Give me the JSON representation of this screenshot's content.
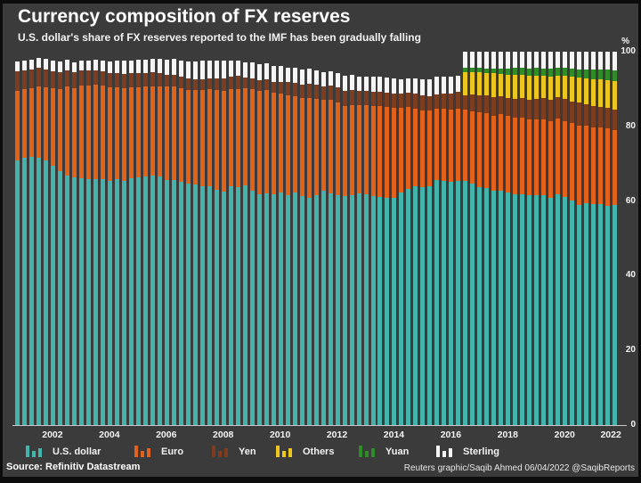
{
  "header": {
    "title": "Currency composition of FX reserves",
    "subtitle": "U.S. dollar's share of FX reserves reported to the IMF has been gradually falling"
  },
  "chart_data": {
    "type": "bar",
    "stacked": true,
    "title": "Currency composition of FX reserves",
    "unit": "%",
    "y_axis_unit_label": "%",
    "ylim": [
      0,
      100
    ],
    "grid": false,
    "legend_position": "bottom",
    "x_period_start": "2001 Q1",
    "x_period_end": "2022 Q1",
    "x_frequency": "quarterly",
    "y_ticks": [
      "100",
      "80",
      "60",
      "40",
      "20",
      "0"
    ],
    "x_ticks": [
      {
        "label": "2002",
        "center_index": 5.5
      },
      {
        "label": "2004",
        "center_index": 13.5
      },
      {
        "label": "2006",
        "center_index": 21.5
      },
      {
        "label": "2008",
        "center_index": 29.5
      },
      {
        "label": "2010",
        "center_index": 37.5
      },
      {
        "label": "2012",
        "center_index": 45.5
      },
      {
        "label": "2014",
        "center_index": 53.5
      },
      {
        "label": "2016",
        "center_index": 61.5
      },
      {
        "label": "2018",
        "center_index": 69.5
      },
      {
        "label": "2020",
        "center_index": 77.5
      },
      {
        "label": "2022",
        "center_index": 84
      }
    ],
    "series": [
      {
        "key": "us-dollar",
        "name": "U.S. dollar",
        "color": "#43b3ab",
        "values": [
          71.0,
          71.6,
          71.8,
          71.5,
          71.0,
          69.5,
          68.0,
          66.9,
          66.3,
          66.1,
          65.9,
          65.9,
          65.9,
          65.5,
          65.8,
          65.5,
          66.0,
          66.3,
          66.5,
          66.9,
          66.5,
          65.6,
          65.7,
          65.1,
          64.6,
          64.5,
          63.9,
          63.9,
          62.9,
          62.6,
          64.0,
          63.8,
          64.2,
          62.8,
          61.7,
          62.1,
          61.7,
          62.3,
          61.6,
          62.2,
          61.4,
          60.9,
          61.5,
          62.7,
          62.1,
          61.6,
          61.3,
          61.5,
          62.1,
          61.8,
          61.4,
          61.2,
          60.8,
          60.8,
          62.4,
          63.3,
          64.0,
          63.8,
          64.0,
          65.7,
          65.4,
          65.2,
          65.4,
          65.3,
          64.6,
          63.8,
          63.5,
          62.7,
          62.8,
          62.4,
          61.9,
          61.7,
          61.6,
          61.5,
          61.6,
          60.9,
          61.8,
          61.2,
          60.2,
          59.0,
          59.4,
          59.2,
          59.1,
          58.8,
          58.9
        ]
      },
      {
        "key": "euro",
        "name": "Euro",
        "color": "#e2621c",
        "values": [
          18.5,
          18.3,
          18.5,
          19.2,
          19.5,
          20.7,
          21.9,
          23.7,
          24.0,
          24.8,
          25.1,
          25.2,
          25.0,
          24.9,
          24.7,
          24.8,
          24.4,
          24.2,
          24.1,
          23.9,
          24.3,
          25.0,
          24.9,
          25.1,
          25.2,
          25.2,
          25.9,
          26.1,
          26.8,
          27.0,
          25.9,
          26.2,
          25.9,
          27.1,
          27.8,
          27.7,
          27.3,
          26.5,
          26.8,
          25.8,
          26.1,
          26.6,
          25.8,
          24.4,
          24.9,
          24.9,
          24.1,
          24.1,
          23.5,
          23.8,
          24.1,
          24.2,
          24.4,
          24.1,
          22.6,
          21.9,
          20.8,
          20.5,
          20.3,
          19.1,
          19.4,
          19.2,
          19.3,
          19.1,
          19.3,
          19.9,
          20.0,
          20.2,
          20.4,
          20.3,
          20.5,
          20.7,
          20.2,
          20.4,
          20.3,
          20.6,
          20.2,
          20.3,
          20.6,
          21.3,
          20.7,
          20.6,
          20.5,
          20.6,
          20.1
        ]
      },
      {
        "key": "yen",
        "name": "Yen",
        "color": "#7d3c1d",
        "values": [
          5.2,
          5.0,
          4.9,
          5.0,
          4.8,
          4.6,
          4.5,
          4.4,
          4.2,
          4.0,
          3.9,
          3.9,
          3.9,
          3.9,
          3.8,
          3.8,
          3.8,
          3.7,
          3.6,
          3.6,
          3.5,
          3.3,
          3.2,
          3.1,
          3.0,
          2.9,
          2.9,
          2.9,
          3.1,
          3.2,
          3.3,
          3.5,
          3.0,
          2.9,
          2.9,
          2.9,
          3.0,
          3.2,
          3.4,
          3.7,
          3.7,
          3.8,
          3.8,
          3.6,
          3.9,
          4.0,
          4.1,
          4.1,
          3.9,
          3.9,
          3.8,
          3.8,
          3.9,
          4.0,
          3.9,
          3.9,
          4.0,
          3.9,
          3.8,
          3.8,
          4.1,
          4.5,
          4.5,
          4.0,
          4.6,
          4.7,
          4.8,
          4.9,
          4.9,
          5.0,
          5.0,
          5.2,
          5.3,
          5.4,
          5.6,
          5.7,
          5.9,
          5.8,
          5.9,
          6.0,
          5.9,
          5.6,
          5.6,
          5.5,
          5.4
        ]
      },
      {
        "key": "others",
        "name": "Others",
        "color": "#ecc51f",
        "values": [
          0,
          0,
          0,
          0,
          0,
          0,
          0,
          0,
          0,
          0,
          0,
          0,
          0,
          0,
          0,
          0,
          0,
          0,
          0,
          0,
          0,
          0,
          0,
          0,
          0,
          0,
          0,
          0,
          0,
          0,
          0,
          0,
          0,
          0,
          0,
          0,
          0,
          0,
          0,
          0,
          0,
          0,
          0,
          0,
          0,
          0,
          0,
          0,
          0,
          0,
          0,
          0,
          0,
          0,
          0,
          0,
          0,
          0,
          0,
          0,
          0,
          0,
          0,
          6.1,
          6.1,
          6.1,
          6.0,
          6.5,
          6.0,
          6.0,
          6.4,
          6.1,
          6.4,
          6.3,
          6.0,
          6.2,
          5.7,
          6.2,
          6.6,
          6.7,
          6.8,
          7.3,
          7.3,
          7.5,
          7.7
        ]
      },
      {
        "key": "yuan",
        "name": "Yuan",
        "color": "#2f8c28",
        "values": [
          0,
          0,
          0,
          0,
          0,
          0,
          0,
          0,
          0,
          0,
          0,
          0,
          0,
          0,
          0,
          0,
          0,
          0,
          0,
          0,
          0,
          0,
          0,
          0,
          0,
          0,
          0,
          0,
          0,
          0,
          0,
          0,
          0,
          0,
          0,
          0,
          0,
          0,
          0,
          0,
          0,
          0,
          0,
          0,
          0,
          0,
          0,
          0,
          0,
          0,
          0,
          0,
          0,
          0,
          0,
          0,
          0,
          0,
          0,
          0,
          0,
          0,
          0,
          1.1,
          1.1,
          1.1,
          1.2,
          1.2,
          1.4,
          1.8,
          1.8,
          1.9,
          2.0,
          2.0,
          2.0,
          2.0,
          2.0,
          2.1,
          2.2,
          2.3,
          2.5,
          2.6,
          2.7,
          2.8,
          2.9
        ]
      },
      {
        "key": "sterling",
        "name": "Sterling",
        "color": "#f5f5f5",
        "values": [
          2.7,
          2.7,
          2.7,
          2.7,
          2.8,
          2.8,
          2.9,
          2.9,
          2.7,
          2.7,
          2.7,
          2.8,
          2.9,
          3.0,
          3.2,
          3.4,
          3.5,
          3.6,
          3.7,
          3.6,
          3.9,
          4.0,
          4.2,
          4.4,
          4.5,
          4.7,
          4.8,
          4.7,
          4.7,
          4.8,
          4.5,
          4.2,
          4.1,
          4.3,
          4.3,
          4.3,
          4.2,
          4.1,
          4.0,
          3.9,
          4.0,
          4.1,
          3.9,
          3.8,
          3.9,
          3.8,
          4.0,
          4.0,
          3.9,
          3.8,
          3.9,
          4.0,
          3.9,
          3.9,
          3.8,
          3.8,
          4.0,
          4.3,
          4.6,
          4.7,
          4.4,
          4.5,
          4.4,
          4.4,
          4.3,
          4.4,
          4.5,
          4.5,
          4.5,
          4.5,
          4.4,
          4.4,
          4.5,
          4.4,
          4.5,
          4.6,
          4.4,
          4.4,
          4.5,
          4.7,
          4.7,
          4.7,
          4.8,
          4.8,
          5.0
        ]
      }
    ]
  },
  "footer": {
    "source": "Source: Refinitiv Datastream",
    "credit": "Reuters graphic/Saqib Ahmed 06/04/2022 @SaqibReports"
  }
}
